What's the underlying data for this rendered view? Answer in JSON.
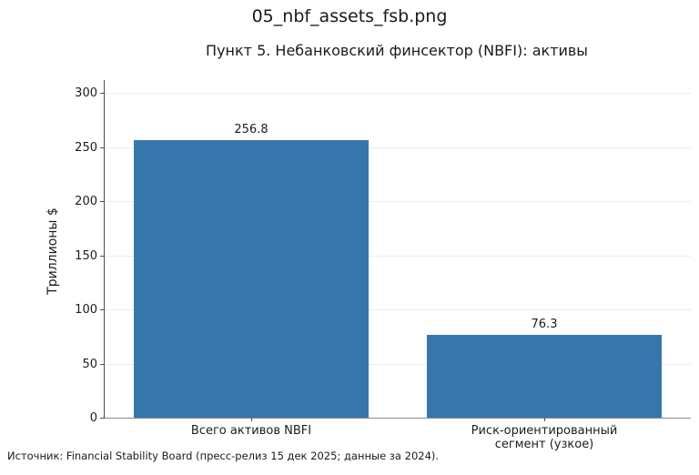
{
  "page": {
    "filename_title": "05_nbf_assets_fsb.png",
    "source_note": "Источник: Financial Stability Board (пресс-релиз 15 дек 2025; данные за 2024)."
  },
  "chart_data": {
    "type": "bar",
    "title": "Пункт 5. Небанковский финсектор (NBFI): активы",
    "categories": [
      "Всего активов NBFI",
      "Риск-ориентированный\nсегмент (узкое)"
    ],
    "values": [
      256.8,
      76.3
    ],
    "value_labels": [
      "256.8",
      "76.3"
    ],
    "xlabel": "",
    "ylabel": "Триллионы $",
    "yticks": [
      0,
      50,
      100,
      150,
      200,
      250,
      300
    ],
    "ylim": [
      0,
      312
    ],
    "grid": "horizontal",
    "legend": "none",
    "bar_color": "#3776ab",
    "grid_color": "#ececec",
    "axis_color": "#4d4d4d",
    "text_color": "#1c1c1c"
  }
}
